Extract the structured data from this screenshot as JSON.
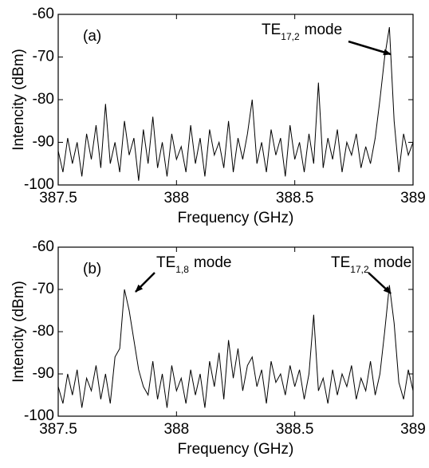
{
  "chart_data": [
    {
      "type": "line",
      "panel_label": "(a)",
      "annotations": [
        {
          "text": "TE",
          "sub": "17,2",
          "suffix": "mode"
        }
      ],
      "xlabel": "Frequency (GHz)",
      "ylabel": "Intencity (dBm)",
      "color": "#000000",
      "xlim": [
        387.5,
        389
      ],
      "ylim": [
        -100,
        -60
      ],
      "xticks": [
        387.5,
        388,
        388.5,
        389
      ],
      "yticks": [
        -100,
        -90,
        -80,
        -70,
        -60
      ],
      "x": [
        387.5,
        387.52,
        387.54,
        387.56,
        387.58,
        387.6,
        387.62,
        387.64,
        387.66,
        387.68,
        387.7,
        387.72,
        387.74,
        387.76,
        387.78,
        387.8,
        387.82,
        387.84,
        387.86,
        387.88,
        387.9,
        387.92,
        387.94,
        387.96,
        387.98,
        388,
        388.02,
        388.04,
        388.06,
        388.08,
        388.1,
        388.12,
        388.14,
        388.16,
        388.18,
        388.2,
        388.22,
        388.24,
        388.26,
        388.28,
        388.3,
        388.32,
        388.34,
        388.36,
        388.38,
        388.4,
        388.42,
        388.44,
        388.46,
        388.48,
        388.5,
        388.52,
        388.54,
        388.56,
        388.58,
        388.6,
        388.62,
        388.64,
        388.66,
        388.68,
        388.7,
        388.72,
        388.74,
        388.76,
        388.78,
        388.8,
        388.82,
        388.84,
        388.86,
        388.88,
        388.9,
        388.92,
        388.94,
        388.96,
        388.98,
        389
      ],
      "values": [
        -92,
        -97,
        -89,
        -95,
        -90,
        -98,
        -88,
        -94,
        -86,
        -96,
        -81,
        -95,
        -90,
        -97,
        -85,
        -93,
        -89,
        -99,
        -87,
        -95,
        -84,
        -96,
        -90,
        -98,
        -88,
        -94,
        -91,
        -97,
        -86,
        -95,
        -89,
        -98,
        -87,
        -93,
        -90,
        -96,
        -85,
        -97,
        -89,
        -94,
        -88,
        -80,
        -95,
        -90,
        -97,
        -87,
        -93,
        -89,
        -98,
        -86,
        -94,
        -90,
        -97,
        -88,
        -95,
        -76,
        -96,
        -89,
        -94,
        -87,
        -97,
        -90,
        -93,
        -88,
        -96,
        -91,
        -95,
        -89,
        -80,
        -70,
        -63,
        -85,
        -97,
        -88,
        -93,
        -90
      ]
    },
    {
      "type": "line",
      "panel_label": "(b)",
      "annotations": [
        {
          "text": "TE",
          "sub": "1,8",
          "suffix": "mode"
        },
        {
          "text": "TE",
          "sub": "17,2",
          "suffix": "mode"
        }
      ],
      "xlabel": "Frequency (GHz)",
      "ylabel": "Intencity (dBm)",
      "color": "#000000",
      "xlim": [
        387.5,
        389
      ],
      "ylim": [
        -100,
        -60
      ],
      "xticks": [
        387.5,
        388,
        388.5,
        389
      ],
      "yticks": [
        -100,
        -90,
        -80,
        -70,
        -60
      ],
      "x": [
        387.5,
        387.52,
        387.54,
        387.56,
        387.58,
        387.6,
        387.62,
        387.64,
        387.66,
        387.68,
        387.7,
        387.72,
        387.74,
        387.76,
        387.78,
        387.8,
        387.82,
        387.84,
        387.86,
        387.88,
        387.9,
        387.92,
        387.94,
        387.96,
        387.98,
        388,
        388.02,
        388.04,
        388.06,
        388.08,
        388.1,
        388.12,
        388.14,
        388.16,
        388.18,
        388.2,
        388.22,
        388.24,
        388.26,
        388.28,
        388.3,
        388.32,
        388.34,
        388.36,
        388.38,
        388.4,
        388.42,
        388.44,
        388.46,
        388.48,
        388.5,
        388.52,
        388.54,
        388.56,
        388.58,
        388.6,
        388.62,
        388.64,
        388.66,
        388.68,
        388.7,
        388.72,
        388.74,
        388.76,
        388.78,
        388.8,
        388.82,
        388.84,
        388.86,
        388.88,
        388.9,
        388.92,
        388.94,
        388.96,
        388.98,
        389
      ],
      "values": [
        -93,
        -97,
        -90,
        -95,
        -89,
        -98,
        -91,
        -94,
        -88,
        -96,
        -90,
        -97,
        -86,
        -84,
        -70,
        -75,
        -82,
        -89,
        -93,
        -95,
        -87,
        -96,
        -90,
        -98,
        -88,
        -94,
        -91,
        -97,
        -89,
        -95,
        -90,
        -98,
        -87,
        -93,
        -85,
        -96,
        -82,
        -91,
        -84,
        -94,
        -88,
        -86,
        -93,
        -89,
        -97,
        -87,
        -92,
        -90,
        -95,
        -88,
        -93,
        -89,
        -96,
        -90,
        -76,
        -94,
        -91,
        -97,
        -89,
        -95,
        -90,
        -93,
        -88,
        -96,
        -91,
        -94,
        -87,
        -95,
        -90,
        -80,
        -69,
        -78,
        -92,
        -96,
        -89,
        -94
      ]
    }
  ]
}
